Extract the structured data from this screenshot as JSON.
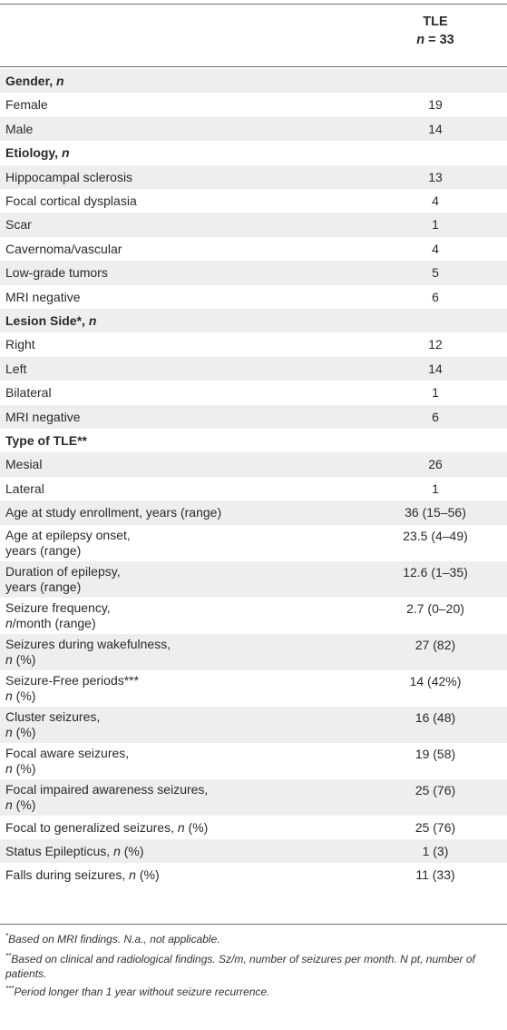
{
  "header": {
    "col_title": "TLE",
    "col_n_label": "n",
    "col_n_value": "= 33"
  },
  "rows": [
    {
      "label": "Gender, ",
      "italic": "n",
      "value": "",
      "section": true
    },
    {
      "label": "Female",
      "value": "19"
    },
    {
      "label": "Male",
      "value": "14"
    },
    {
      "label": "Etiology, ",
      "italic": "n",
      "value": "",
      "section": true
    },
    {
      "label": "Hippocampal sclerosis",
      "value": "13"
    },
    {
      "label": "Focal cortical dysplasia",
      "value": "4"
    },
    {
      "label": "Scar",
      "value": "1"
    },
    {
      "label": "Cavernoma/vascular",
      "value": "4"
    },
    {
      "label": "Low-grade tumors",
      "value": "5"
    },
    {
      "label": "MRI negative",
      "value": "6"
    },
    {
      "label": "Lesion Side*, ",
      "italic": "n",
      "value": "",
      "section": true
    },
    {
      "label": "Right",
      "value": "12"
    },
    {
      "label": "Left",
      "value": "14"
    },
    {
      "label": "Bilateral",
      "value": "1"
    },
    {
      "label": "MRI negative",
      "value": "6"
    },
    {
      "label": "Type of TLE**",
      "value": "",
      "section": true
    },
    {
      "label": "Mesial",
      "value": "26"
    },
    {
      "label": "Lateral",
      "value": "1"
    },
    {
      "label": "Age at study enrollment, years (range)",
      "value": "36 (15–56)"
    },
    {
      "label": "Age at epilepsy onset,",
      "label2": "years (range)",
      "value": "23.5 (4–49)",
      "tall": true
    },
    {
      "label": "Duration of epilepsy,",
      "label2": "years (range)",
      "value": "12.6 (1–35)",
      "tall": true
    },
    {
      "label": "Seizure frequency,",
      "label2_italic": "n",
      "label2": "/month (range)",
      "value": "2.7 (0–20)",
      "tall": true
    },
    {
      "label": "Seizures during wakefulness,",
      "label2_italic": "n",
      "label2": " (%)",
      "value": "27 (82)",
      "tall": true
    },
    {
      "label": "Seizure-Free periods***",
      "label2_italic": "n",
      "label2": " (%)",
      "value": "14 (42%)",
      "tall": true
    },
    {
      "label": "Cluster seizures,",
      "label2_italic": "n",
      "label2": " (%)",
      "value": "16 (48)",
      "tall": true
    },
    {
      "label": "Focal aware seizures,",
      "label2_italic": "n",
      "label2": " (%)",
      "value": "19 (58)",
      "tall": true
    },
    {
      "label": "Focal impaired awareness seizures,",
      "label2_italic": "n",
      "label2": " (%)",
      "value": "25 (76)",
      "tall": true
    },
    {
      "label": "Focal to generalized seizures, ",
      "italic": "n",
      "tail": " (%)",
      "value": "25 (76)"
    },
    {
      "label": "Status Epilepticus, ",
      "italic": "n",
      "tail": " (%)",
      "value": "1 (3)"
    },
    {
      "label": "Falls during seizures, ",
      "italic": "n",
      "tail": " (%)",
      "value": "11 (33)"
    }
  ],
  "footnotes": [
    {
      "mark": "*",
      "text": "Based on MRI findings. N.a., not applicable."
    },
    {
      "mark": "**",
      "text": "Based on clinical and radiological findings. Sz/m, number of seizures per month. N pt, number of patients."
    },
    {
      "mark": "***",
      "text": "Period longer than 1 year without seizure recurrence."
    }
  ]
}
